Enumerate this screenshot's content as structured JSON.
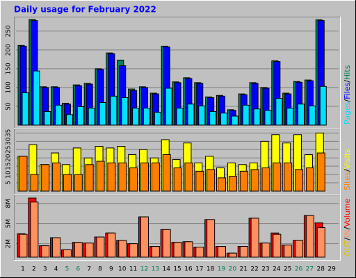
{
  "chart_data": [
    {
      "type": "bar",
      "title": "Daily usage for February 2022",
      "categories": [
        "1",
        "2",
        "3",
        "4",
        "5",
        "6",
        "7",
        "8",
        "9",
        "10",
        "11",
        "12",
        "13",
        "14",
        "15",
        "16",
        "17",
        "18",
        "19",
        "20",
        "21",
        "22",
        "23",
        "24",
        "25",
        "26",
        "27",
        "28",
        "29"
      ],
      "category_colors": [
        "#000000",
        "#000000",
        "#000000",
        "#000000",
        "#00805c",
        "#00805c",
        "#000000",
        "#000000",
        "#000000",
        "#000000",
        "#000000",
        "#00805c",
        "#00805c",
        "#000000",
        "#000000",
        "#000000",
        "#000000",
        "#000000",
        "#00805c",
        "#00805c",
        "#000000",
        "#000000",
        "#000000",
        "#000000",
        "#000000",
        "#00805c",
        "#00805c",
        "#000000",
        "#000000"
      ],
      "legend_separator": "/",
      "ylim": [
        0,
        281
      ],
      "yticks": [
        50,
        100,
        150,
        200,
        250
      ],
      "grid": true,
      "series": [
        {
          "name": "Hits",
          "color": "#00805c",
          "values": [
            212,
            281,
            102,
            102,
            58,
            107,
            111,
            150,
            192,
            173,
            96,
            102,
            85,
            210,
            115,
            126,
            113,
            75,
            79,
            41,
            83,
            113,
            100,
            171,
            85,
            116,
            120,
            280,
            null
          ]
        },
        {
          "name": "Files",
          "color": "#0000ff",
          "values": [
            210,
            278,
            100,
            100,
            56,
            105,
            109,
            148,
            190,
            158,
            92,
            100,
            83,
            208,
            113,
            124,
            111,
            73,
            77,
            39,
            81,
            111,
            98,
            169,
            83,
            114,
            118,
            278,
            null
          ]
        },
        {
          "name": "Pages",
          "color": "#00e0ff",
          "values": [
            86,
            144,
            36,
            53,
            28,
            49,
            45,
            60,
            77,
            73,
            45,
            45,
            34,
            98,
            45,
            56,
            51,
            36,
            32,
            24,
            53,
            43,
            39,
            71,
            45,
            56,
            51,
            103,
            null
          ]
        }
      ]
    },
    {
      "type": "bar",
      "legend_separator": "/",
      "ylim": [
        0,
        36
      ],
      "yticks": [
        5,
        10,
        15,
        20,
        25,
        30,
        35
      ],
      "grid": true,
      "series": [
        {
          "name": "Visits",
          "color": "#ffff00",
          "values": [
            21,
            28,
            16,
            23,
            16,
            26,
            20,
            27,
            26,
            27,
            22,
            25,
            20,
            31,
            19,
            29,
            17,
            21,
            14,
            17,
            16,
            17,
            30,
            34,
            29,
            34,
            22,
            35,
            null
          ]
        },
        {
          "name": "Sites",
          "color": "#ff8000",
          "values": [
            21,
            10,
            16,
            17,
            10,
            10,
            16,
            18,
            17,
            17,
            14,
            17,
            17,
            22,
            14,
            17,
            12,
            13,
            8,
            9,
            12,
            13,
            14,
            17,
            17,
            13,
            14,
            23,
            null
          ]
        }
      ]
    },
    {
      "type": "bar",
      "legend_separator": "/",
      "ylim": [
        0,
        8.9
      ],
      "yticks": [
        {
          "value": 2,
          "label": "2M"
        },
        {
          "value": 5,
          "label": "5M"
        },
        {
          "value": 8,
          "label": "8M"
        }
      ],
      "grid": true,
      "series": [
        {
          "name": "Volume",
          "color": "#ff0000",
          "values": [
            3.5,
            8.8,
            1.7,
            2.9,
            1.1,
            2.2,
            2.1,
            3.0,
            3.6,
            2.5,
            2.0,
            6.0,
            1.6,
            4.1,
            2.2,
            2.3,
            1.5,
            5.6,
            1.6,
            0.6,
            1.6,
            5.8,
            2.1,
            3.6,
            1.8,
            2.5,
            6.2,
            5.1,
            null
          ]
        },
        {
          "name": "IN",
          "color": "#ff9060",
          "values": [
            3.4,
            8.2,
            1.7,
            2.9,
            1.1,
            2.2,
            2.1,
            3.0,
            3.6,
            2.5,
            2.0,
            6.0,
            1.6,
            4.1,
            2.2,
            2.3,
            1.5,
            5.6,
            1.6,
            0.6,
            1.6,
            5.8,
            2.1,
            3.4,
            1.8,
            2.5,
            6.2,
            4.4,
            null
          ]
        },
        {
          "name": "OUT",
          "color": "#e0c000",
          "values": [
            null,
            null,
            null,
            null,
            null,
            null,
            null,
            null,
            null,
            null,
            null,
            null,
            null,
            null,
            null,
            null,
            null,
            null,
            null,
            null,
            null,
            null,
            null,
            null,
            null,
            null,
            null,
            null,
            null
          ]
        }
      ]
    }
  ]
}
